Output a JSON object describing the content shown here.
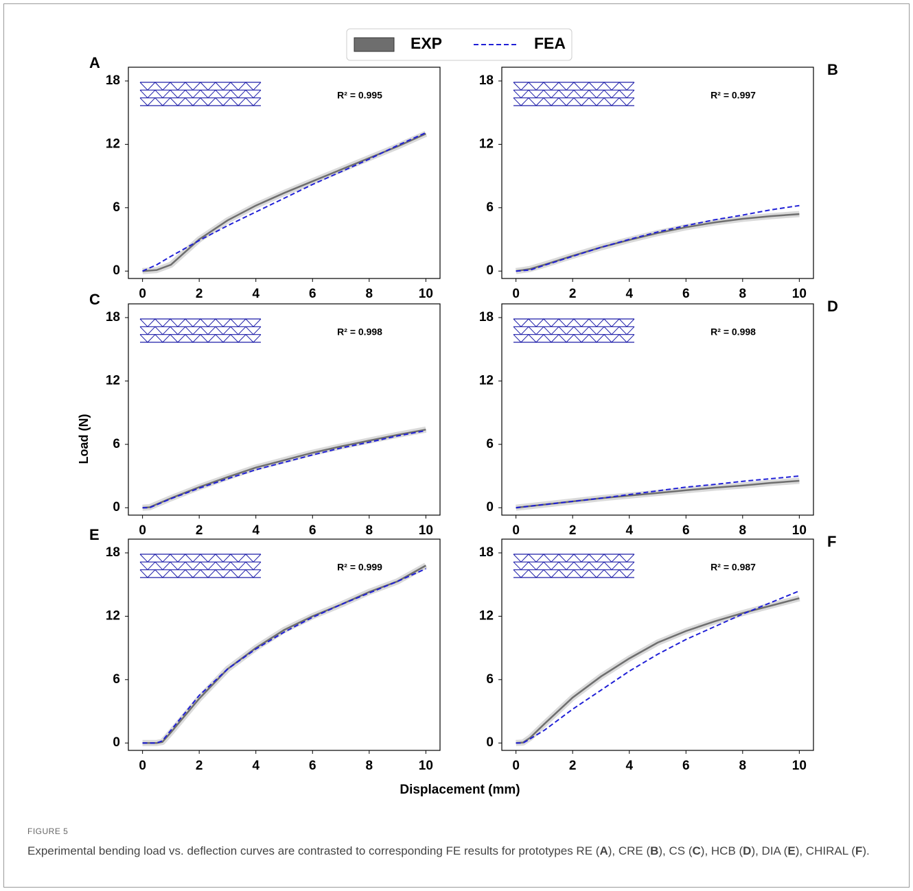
{
  "figure": {
    "ylabel": "Load (N)",
    "xlabel": "Displacement (mm)"
  },
  "caption": {
    "label": "FIGURE 5",
    "parts": [
      {
        "text": "Experimental bending load vs. deflection curves are contrasted to corresponding FE results for prototypes RE (",
        "bold": false
      },
      {
        "text": "A",
        "bold": true
      },
      {
        "text": "), CRE (",
        "bold": false
      },
      {
        "text": "B",
        "bold": true
      },
      {
        "text": "), CS (",
        "bold": false
      },
      {
        "text": "C",
        "bold": true
      },
      {
        "text": "), HCB (",
        "bold": false
      },
      {
        "text": "D",
        "bold": true
      },
      {
        "text": "), DIA (",
        "bold": false
      },
      {
        "text": "E",
        "bold": true
      },
      {
        "text": "), CHIRAL (",
        "bold": false
      },
      {
        "text": "F",
        "bold": true
      },
      {
        "text": ").",
        "bold": false
      }
    ]
  },
  "chart_data": [
    {
      "type": "line",
      "panel": "A",
      "annotation": "R² = 0.995",
      "xlim": [
        -0.5,
        10.5
      ],
      "ylim": [
        -0.7,
        19.3
      ],
      "xticks": [
        0,
        2,
        4,
        6,
        8,
        10
      ],
      "yticks": [
        0,
        6,
        12,
        18
      ],
      "x": [
        0,
        0.5,
        1,
        2,
        3,
        4,
        5,
        6,
        7,
        8,
        9,
        10
      ],
      "series": [
        {
          "name": "EXP",
          "color": "#6e6e6e",
          "dashed": false,
          "values": [
            0,
            0.1,
            0.6,
            3.0,
            4.8,
            6.2,
            7.4,
            8.5,
            9.6,
            10.7,
            11.8,
            13.0
          ]
        },
        {
          "name": "FEA",
          "color": "#1f1fd6",
          "dashed": true,
          "values": [
            0,
            0.6,
            1.4,
            2.9,
            4.3,
            5.6,
            6.9,
            8.2,
            9.4,
            10.6,
            11.9,
            13.1
          ]
        }
      ]
    },
    {
      "type": "line",
      "panel": "B",
      "annotation": "R² = 0.997",
      "xlim": [
        -0.5,
        10.5
      ],
      "ylim": [
        -0.7,
        19.3
      ],
      "xticks": [
        0,
        2,
        4,
        6,
        8,
        10
      ],
      "yticks": [
        0,
        6,
        12,
        18
      ],
      "x": [
        0,
        0.5,
        1,
        2,
        3,
        4,
        5,
        6,
        7,
        8,
        9,
        10
      ],
      "series": [
        {
          "name": "EXP",
          "color": "#6e6e6e",
          "dashed": false,
          "values": [
            0,
            0.2,
            0.6,
            1.45,
            2.25,
            2.95,
            3.6,
            4.15,
            4.6,
            4.95,
            5.2,
            5.4
          ]
        },
        {
          "name": "FEA",
          "color": "#1f1fd6",
          "dashed": true,
          "values": [
            0,
            0.1,
            0.55,
            1.4,
            2.25,
            3.0,
            3.7,
            4.3,
            4.85,
            5.3,
            5.8,
            6.2
          ]
        }
      ]
    },
    {
      "type": "line",
      "panel": "C",
      "annotation": "R² = 0.998",
      "xlim": [
        -0.5,
        10.5
      ],
      "ylim": [
        -0.7,
        19.3
      ],
      "xticks": [
        0,
        2,
        4,
        6,
        8,
        10
      ],
      "yticks": [
        0,
        6,
        12,
        18
      ],
      "x": [
        0,
        0.25,
        1,
        2,
        3,
        4,
        5,
        6,
        7,
        8,
        9,
        10
      ],
      "series": [
        {
          "name": "EXP",
          "color": "#6e6e6e",
          "dashed": false,
          "values": [
            0,
            0.05,
            0.9,
            1.95,
            2.9,
            3.8,
            4.5,
            5.2,
            5.8,
            6.35,
            6.9,
            7.4
          ]
        },
        {
          "name": "FEA",
          "color": "#1f1fd6",
          "dashed": true,
          "values": [
            0,
            0,
            0.85,
            1.85,
            2.75,
            3.6,
            4.3,
            5.0,
            5.65,
            6.2,
            6.8,
            7.3
          ]
        }
      ]
    },
    {
      "type": "line",
      "panel": "D",
      "annotation": "R² = 0.998",
      "xlim": [
        -0.5,
        10.5
      ],
      "ylim": [
        -0.7,
        19.3
      ],
      "xticks": [
        0,
        2,
        4,
        6,
        8,
        10
      ],
      "yticks": [
        0,
        6,
        12,
        18
      ],
      "x": [
        0,
        1,
        2,
        3,
        4,
        5,
        6,
        7,
        8,
        9,
        10
      ],
      "series": [
        {
          "name": "EXP",
          "color": "#6e6e6e",
          "dashed": false,
          "values": [
            0,
            0.3,
            0.6,
            0.9,
            1.15,
            1.4,
            1.65,
            1.9,
            2.1,
            2.35,
            2.55
          ]
        },
        {
          "name": "FEA",
          "color": "#1f1fd6",
          "dashed": true,
          "values": [
            0,
            0.3,
            0.6,
            0.9,
            1.25,
            1.6,
            1.95,
            2.2,
            2.5,
            2.75,
            3.0
          ]
        }
      ]
    },
    {
      "type": "line",
      "panel": "E",
      "annotation": "R² = 0.999",
      "xlim": [
        -0.5,
        10.5
      ],
      "ylim": [
        -0.7,
        19.3
      ],
      "xticks": [
        0,
        2,
        4,
        6,
        8,
        10
      ],
      "yticks": [
        0,
        6,
        12,
        18
      ],
      "x": [
        0,
        0.5,
        0.7,
        1,
        2,
        3,
        4,
        5,
        6,
        7,
        8,
        9,
        10
      ],
      "series": [
        {
          "name": "EXP",
          "color": "#6e6e6e",
          "dashed": false,
          "values": [
            0,
            0,
            0.1,
            1.0,
            4.2,
            7.0,
            9.0,
            10.7,
            12.0,
            13.1,
            14.3,
            15.3,
            16.8
          ]
        },
        {
          "name": "FEA",
          "color": "#1f1fd6",
          "dashed": true,
          "values": [
            0,
            0,
            0.2,
            1.2,
            4.5,
            7.0,
            8.9,
            10.5,
            11.9,
            13.1,
            14.2,
            15.3,
            16.5
          ]
        }
      ]
    },
    {
      "type": "line",
      "panel": "F",
      "annotation": "R² = 0.987",
      "xlim": [
        -0.5,
        10.5
      ],
      "ylim": [
        -0.7,
        19.3
      ],
      "xticks": [
        0,
        2,
        4,
        6,
        8,
        10
      ],
      "yticks": [
        0,
        6,
        12,
        18
      ],
      "x": [
        0,
        0.25,
        0.5,
        1,
        2,
        3,
        4,
        5,
        6,
        7,
        8,
        9,
        10
      ],
      "series": [
        {
          "name": "EXP",
          "color": "#6e6e6e",
          "dashed": false,
          "values": [
            0,
            0.05,
            0.5,
            1.8,
            4.3,
            6.3,
            8.0,
            9.5,
            10.6,
            11.5,
            12.3,
            13.0,
            13.7
          ]
        },
        {
          "name": "FEA",
          "color": "#1f1fd6",
          "dashed": true,
          "values": [
            0,
            0,
            0.4,
            1.2,
            3.2,
            5.0,
            6.8,
            8.4,
            9.8,
            11.0,
            12.2,
            13.3,
            14.4
          ]
        }
      ]
    }
  ]
}
